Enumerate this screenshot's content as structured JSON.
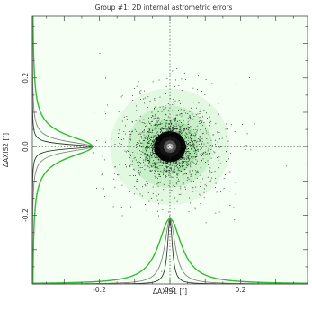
{
  "chart_data": {
    "type": "scatter",
    "title": "Group #1: 2D internal astrometric errors",
    "xlabel": "ΔAXIS1 [″]",
    "ylabel": "ΔAXIS2 [″]",
    "xlim": [
      -0.39,
      0.39
    ],
    "ylim": [
      -0.4,
      0.38
    ],
    "x_ticks": [
      -0.2,
      0.0,
      0.2
    ],
    "x_tick_labels": [
      "-0.2",
      "0.0",
      "0.2"
    ],
    "y_ticks": [
      -0.2,
      0.0,
      0.2
    ],
    "y_tick_labels": [
      "-0.2",
      "0.0",
      "0.2"
    ],
    "grid": false,
    "center": [
      0.0,
      0.0
    ],
    "zero_lines": [
      0.0
    ],
    "scatter_color": "#000000",
    "halo_color": "#2fbf3a",
    "curve_colors": {
      "fit": "#33bb33",
      "model_1": "#777777",
      "model_2": "#222222"
    },
    "marginal_x_widths": [
      0.008,
      0.018,
      0.04
    ],
    "marginal_y_widths": [
      0.008,
      0.018,
      0.04
    ]
  }
}
